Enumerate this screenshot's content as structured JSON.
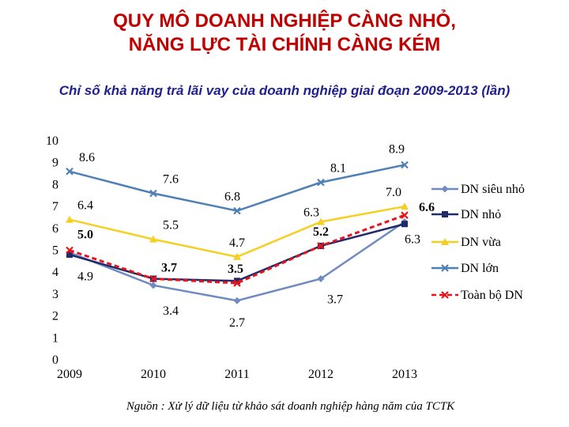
{
  "title_lines": [
    "QUY MÔ DOANH NGHIỆP CÀNG NHỎ,",
    "NĂNG LỰC TÀI CHÍNH CÀNG KÉM"
  ],
  "source": "Nguồn : Xử lý dữ liệu từ khảo sát doanh nghiệp hàng năm của TCTK",
  "chart_data": {
    "type": "line",
    "title": "Chỉ số khả năng trả lãi vay của doanh nghiệp giai đoạn 2009-2013 (lần)",
    "xlabel": "",
    "ylabel": "",
    "categories": [
      "2009",
      "2010",
      "2011",
      "2012",
      "2013"
    ],
    "ylim": [
      0,
      10
    ],
    "yticks": [
      "0",
      "1",
      "2",
      "3",
      "4",
      "5",
      "6",
      "7",
      "8",
      "9",
      "10"
    ],
    "grid": false,
    "legend_position": "right",
    "series": [
      {
        "name": "DN siêu nhỏ",
        "values": [
          4.9,
          3.4,
          2.7,
          3.7,
          6.3
        ],
        "color": "#6f8bbf",
        "marker": "diamond",
        "dashed": false
      },
      {
        "name": "DN nhỏ",
        "values": [
          4.8,
          3.7,
          3.6,
          5.2,
          6.2
        ],
        "color": "#1f2a6b",
        "marker": "square",
        "dashed": false
      },
      {
        "name": "DN vừa",
        "values": [
          6.4,
          5.5,
          4.7,
          6.3,
          7.0
        ],
        "color": "#f5cf22",
        "marker": "triangle",
        "dashed": false
      },
      {
        "name": "DN lớn",
        "values": [
          8.6,
          7.6,
          6.8,
          8.1,
          8.9
        ],
        "color": "#4e7fb5",
        "marker": "x",
        "dashed": false
      },
      {
        "name": "Toàn bộ DN",
        "values": [
          5.0,
          3.7,
          3.5,
          5.2,
          6.6
        ],
        "color": "#e8141b",
        "marker": "x",
        "dashed": true
      }
    ],
    "data_labels": [
      {
        "text": "8.6",
        "x": "2009",
        "y": 8.6,
        "bold": false
      },
      {
        "text": "7.6",
        "x": "2010",
        "y": 7.6,
        "bold": false
      },
      {
        "text": "6.8",
        "x": "2011",
        "y": 6.8,
        "bold": false
      },
      {
        "text": "8.1",
        "x": "2012",
        "y": 8.1,
        "bold": false
      },
      {
        "text": "8.9",
        "x": "2013",
        "y": 8.9,
        "bold": false
      },
      {
        "text": "6.4",
        "x": "2009",
        "y": 6.4,
        "bold": false
      },
      {
        "text": "5.5",
        "x": "2010",
        "y": 5.5,
        "bold": false
      },
      {
        "text": "4.7",
        "x": "2011",
        "y": 4.7,
        "bold": false
      },
      {
        "text": "6.3",
        "x": "2012",
        "y": 6.3,
        "bold": false
      },
      {
        "text": "7.0",
        "x": "2013",
        "y": 7.0,
        "bold": false
      },
      {
        "text": "5.0",
        "x": "2009",
        "y": 5.0,
        "bold": true
      },
      {
        "text": "3.7",
        "x": "2010",
        "y": 3.7,
        "bold": true
      },
      {
        "text": "3.5",
        "x": "2011",
        "y": 3.5,
        "bold": true
      },
      {
        "text": "5.2",
        "x": "2012",
        "y": 5.2,
        "bold": true
      },
      {
        "text": "6.6",
        "x": "2013",
        "y": 6.6,
        "bold": true
      },
      {
        "text": "4.9",
        "x": "2009",
        "y": 4.9,
        "bold": false
      },
      {
        "text": "3.4",
        "x": "2010",
        "y": 3.4,
        "bold": false
      },
      {
        "text": "2.7",
        "x": "2011",
        "y": 2.7,
        "bold": false
      },
      {
        "text": "3.7",
        "x": "2012",
        "y": 3.7,
        "bold": false
      },
      {
        "text": "6.3",
        "x": "2013",
        "y": 6.3,
        "bold": false
      }
    ]
  }
}
